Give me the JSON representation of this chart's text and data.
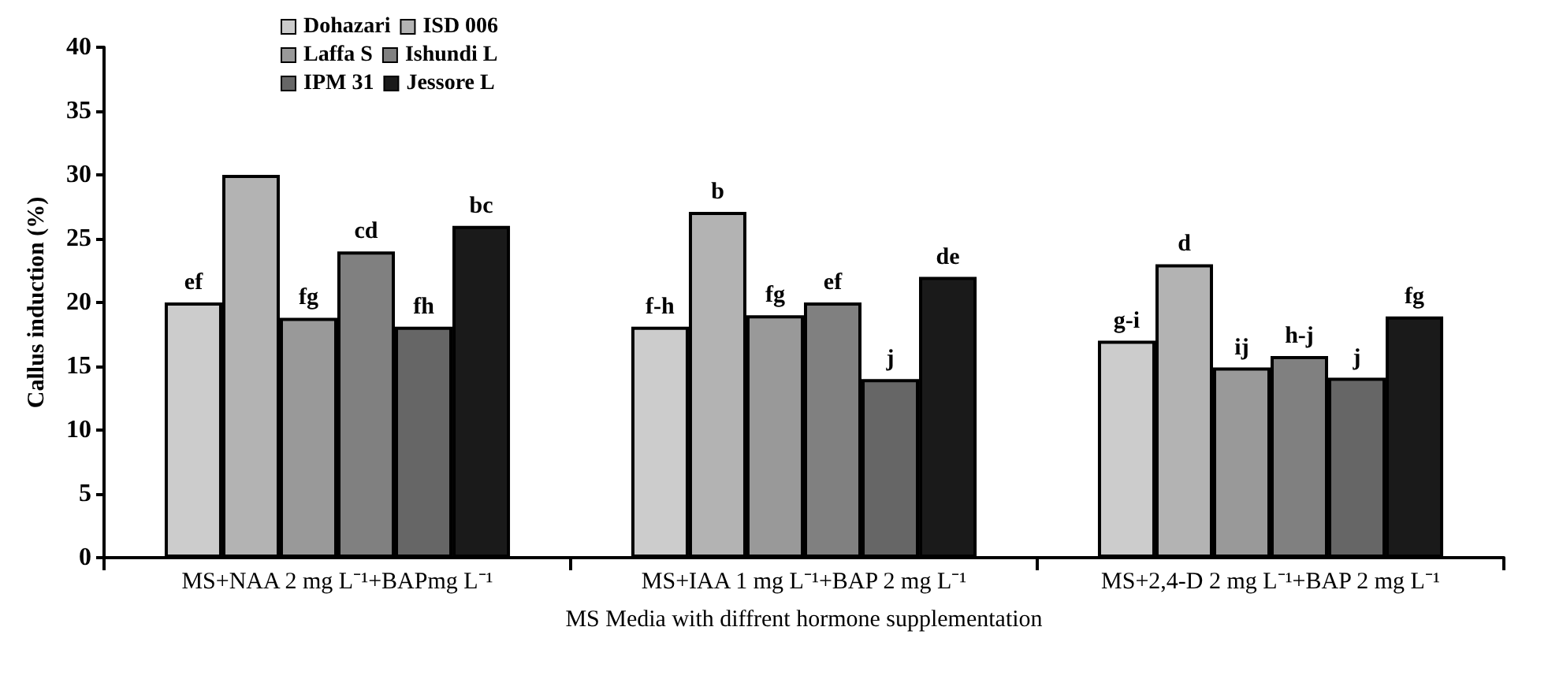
{
  "chart_data": {
    "type": "bar",
    "xlabel": "MS Media with diffrent hormone supplementation",
    "ylabel": "Callus induction (%)",
    "categories": [
      "MS+NAA 2 mg L⁻¹+BAPmg L⁻¹",
      "MS+IAA 1 mg L⁻¹+BAP 2 mg L⁻¹",
      "MS+2,4-D 2 mg L⁻¹+BAP 2 mg L⁻¹"
    ],
    "series": [
      {
        "name": "Dohazari",
        "color": "#cccccc",
        "values": [
          20,
          18.1,
          17
        ],
        "value_labels": [
          "ef",
          "f-h",
          "g-i"
        ]
      },
      {
        "name": "ISD 006",
        "color": "#b3b3b3",
        "values": [
          30,
          27.1,
          23
        ],
        "value_labels": [
          null,
          "b",
          "d"
        ]
      },
      {
        "name": "Laffa S",
        "color": "#999999",
        "values": [
          18.8,
          19,
          14.9
        ],
        "value_labels": [
          "fg",
          "fg",
          "ij"
        ]
      },
      {
        "name": "Ishundi L",
        "color": "#808080",
        "values": [
          24,
          20,
          15.8
        ],
        "value_labels": [
          "cd",
          "ef",
          "h-j"
        ]
      },
      {
        "name": "IPM 31",
        "color": "#666666",
        "values": [
          18.1,
          14,
          14.1
        ],
        "value_labels": [
          "fh",
          "j",
          "j"
        ]
      },
      {
        "name": "Jessore L",
        "color": "#1a1a1a",
        "values": [
          26,
          22,
          18.9
        ],
        "value_labels": [
          "bc",
          "de",
          "fg"
        ]
      }
    ],
    "ylim": [
      0,
      40
    ],
    "yticks": [
      0,
      5,
      10,
      15,
      20,
      25,
      30,
      35,
      40
    ],
    "grid": false,
    "legend": "top"
  }
}
